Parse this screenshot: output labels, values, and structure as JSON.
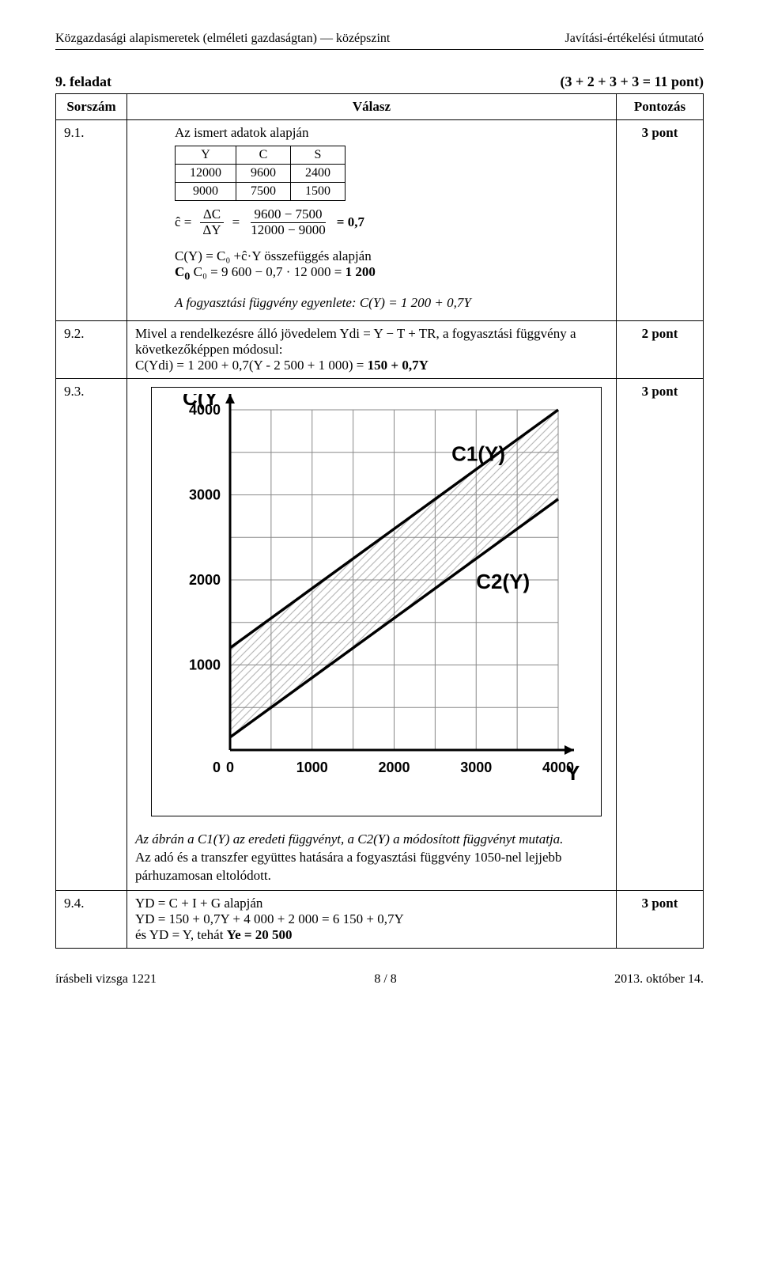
{
  "header": {
    "left": "Közgazdasági alapismeretek (elméleti gazdaságtan) — középszint",
    "right": "Javítási-értékelési útmutató"
  },
  "task": {
    "label": "9. feladat",
    "points_expr": "(3 + 2 + 3 + 3 = 11 pont)"
  },
  "table": {
    "head": {
      "c1": "Sorszám",
      "c2": "Válasz",
      "c3": "Pontozás"
    },
    "row91": {
      "id": "9.1.",
      "intro": "Az ismert adatok alapján",
      "inner_table": [
        [
          "Y",
          "C",
          "S"
        ],
        [
          "12000",
          "9600",
          "2400"
        ],
        [
          "9000",
          "7500",
          "1500"
        ]
      ],
      "c_hat": "ĉ =",
      "frac1_num": "ΔC",
      "frac1_den": "ΔY",
      "eq1": "=",
      "frac2_num": "9600 − 7500",
      "frac2_den": "12000 − 9000",
      "eq2": "= 0,7",
      "line_cy": "C(Y) = C₀ +ĉ·Y összefüggés alapján",
      "line_c0": "C₀ = 9 600 − 0,7 · 12 000 = ",
      "line_c0_bold": "1 200",
      "line_fn_italic": "A fogyasztási függvény egyenlete: C(Y) = 1 200 + 0,7Y",
      "points": "3 pont"
    },
    "row92": {
      "id": "9.2.",
      "text1": "Mivel a rendelkezésre álló jövedelem  Ydi = Y − T + TR, a fogyasztási függvény a következőképpen módosul:",
      "text2": "C(Ydi) = 1 200 + 0,7(Y - 2 500 + 1 000) = ",
      "text2_bold": "150 + 0,7Y",
      "points": "2 pont"
    },
    "row93": {
      "id": "9.3.",
      "chart": {
        "ylabel": "C(Y",
        "xlabel": "Y",
        "series1_label": "C1(Y)",
        "series2_label": "C2(Y)",
        "yticks": [
          "0",
          "1000",
          "2000",
          "3000",
          "4000"
        ],
        "xticks": [
          "0",
          "1000",
          "2000",
          "3000",
          "4000"
        ],
        "grid_color": "#888888",
        "bg_color": "#ffffff",
        "line_color": "#000000",
        "hatch_color": "#bbbbbb",
        "c1_y0": 1200,
        "c1_y4000": 4000,
        "c2_y0": 150,
        "c2_y4000": 2950
      },
      "desc_italic": "Az ábrán a C1(Y) az eredeti függvényt, a C2(Y) a módosított függvényt mutatja.",
      "desc_plain": "Az adó és a transzfer együttes hatására a fogyasztási függvény 1050-nel lejjebb párhuzamosan eltolódott.",
      "points": "3 pont"
    },
    "row94": {
      "id": "9.4.",
      "line1": "YD = C + I + G alapján",
      "line2": "YD = 150 + 0,7Y + 4 000 + 2 000 = 6 150 + 0,7Y",
      "line3_a": "és YD = Y, tehát ",
      "line3_b": "Ye = 20 500",
      "points": "3 pont"
    }
  },
  "footer": {
    "left": "írásbeli vizsga 1221",
    "center": "8 / 8",
    "right": "2013. október 14."
  }
}
